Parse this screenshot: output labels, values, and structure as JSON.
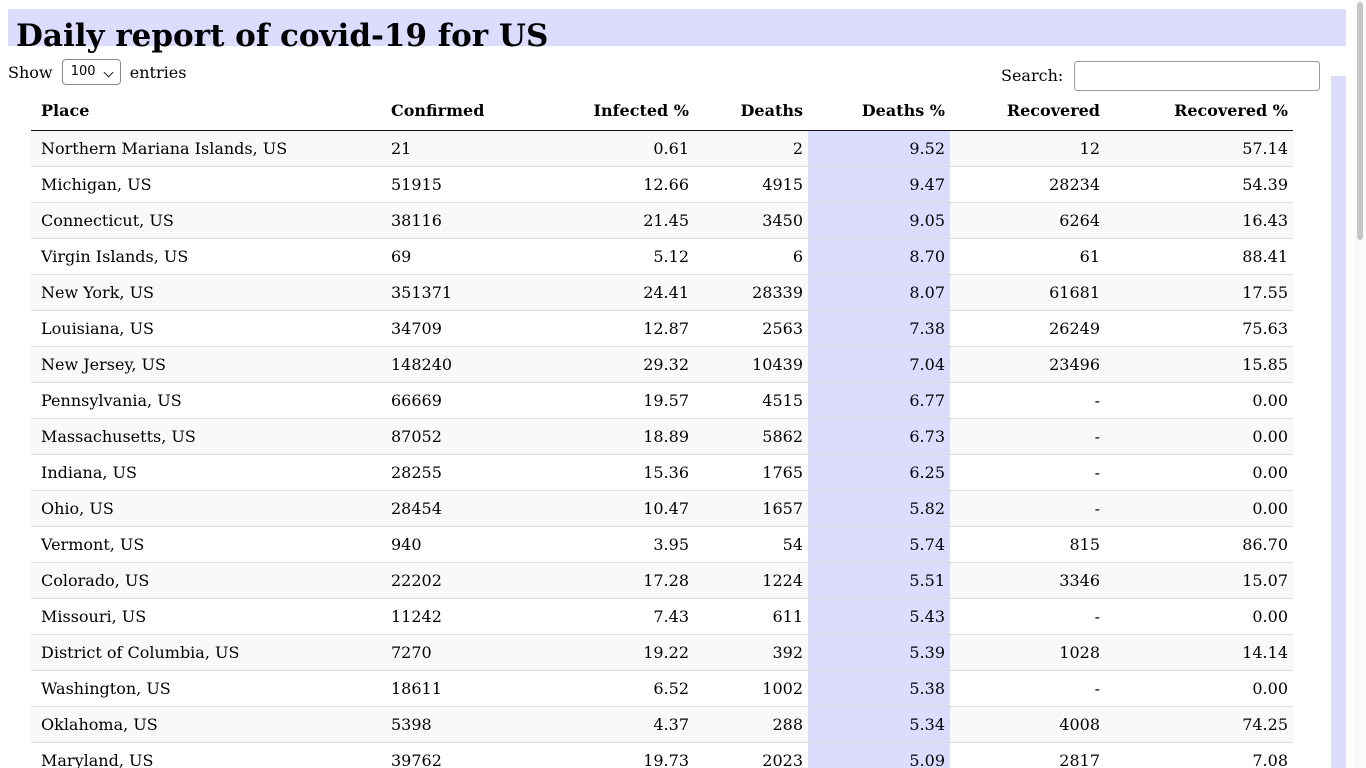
{
  "header": {
    "title": "Daily report of covid-19 for US"
  },
  "length_control": {
    "show_label": "Show",
    "selected": "100",
    "entries_label": "entries"
  },
  "search": {
    "label": "Search:",
    "value": "",
    "placeholder": ""
  },
  "colors": {
    "accent": "#dcdcff",
    "row_stripe": "#f9f9f9",
    "row_divider": "#dddddd"
  },
  "table": {
    "sorted_column": "Deaths %",
    "columns": [
      "Place",
      "Confirmed",
      "Infected %",
      "Deaths",
      "Deaths %",
      "Recovered",
      "Recovered %"
    ],
    "rows": [
      [
        "Northern Mariana Islands, US",
        "21",
        "0.61",
        "2",
        "9.52",
        "12",
        "57.14"
      ],
      [
        "Michigan, US",
        "51915",
        "12.66",
        "4915",
        "9.47",
        "28234",
        "54.39"
      ],
      [
        "Connecticut, US",
        "38116",
        "21.45",
        "3450",
        "9.05",
        "6264",
        "16.43"
      ],
      [
        "Virgin Islands, US",
        "69",
        "5.12",
        "6",
        "8.70",
        "61",
        "88.41"
      ],
      [
        "New York, US",
        "351371",
        "24.41",
        "28339",
        "8.07",
        "61681",
        "17.55"
      ],
      [
        "Louisiana, US",
        "34709",
        "12.87",
        "2563",
        "7.38",
        "26249",
        "75.63"
      ],
      [
        "New Jersey, US",
        "148240",
        "29.32",
        "10439",
        "7.04",
        "23496",
        "15.85"
      ],
      [
        "Pennsylvania, US",
        "66669",
        "19.57",
        "4515",
        "6.77",
        "-",
        "0.00"
      ],
      [
        "Massachusetts, US",
        "87052",
        "18.89",
        "5862",
        "6.73",
        "-",
        "0.00"
      ],
      [
        "Indiana, US",
        "28255",
        "15.36",
        "1765",
        "6.25",
        "-",
        "0.00"
      ],
      [
        "Ohio, US",
        "28454",
        "10.47",
        "1657",
        "5.82",
        "-",
        "0.00"
      ],
      [
        "Vermont, US",
        "940",
        "3.95",
        "54",
        "5.74",
        "815",
        "86.70"
      ],
      [
        "Colorado, US",
        "22202",
        "17.28",
        "1224",
        "5.51",
        "3346",
        "15.07"
      ],
      [
        "Missouri, US",
        "11242",
        "7.43",
        "611",
        "5.43",
        "-",
        "0.00"
      ],
      [
        "District of Columbia, US",
        "7270",
        "19.22",
        "392",
        "5.39",
        "1028",
        "14.14"
      ],
      [
        "Washington, US",
        "18611",
        "6.52",
        "1002",
        "5.38",
        "-",
        "0.00"
      ],
      [
        "Oklahoma, US",
        "5398",
        "4.37",
        "288",
        "5.34",
        "4008",
        "74.25"
      ],
      [
        "Maryland, US",
        "39762",
        "19.73",
        "2023",
        "5.09",
        "2817",
        "7.08"
      ]
    ]
  }
}
